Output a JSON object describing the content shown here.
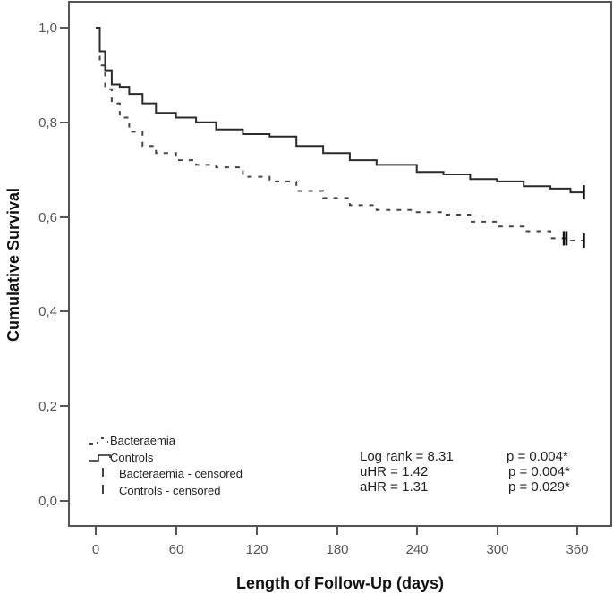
{
  "chart_data": {
    "type": "line",
    "subtype": "kaplan-meier-survival",
    "title": "",
    "xlabel": "Length of Follow-Up (days)",
    "ylabel": "Cumulative Survival",
    "xlim": [
      0,
      365
    ],
    "ylim": [
      0.0,
      1.0
    ],
    "x_ticks": [
      0,
      60,
      120,
      180,
      240,
      300,
      360
    ],
    "x_tick_labels": [
      "0",
      "60",
      "120",
      "180",
      "240",
      "300",
      "360"
    ],
    "y_ticks": [
      0.0,
      0.2,
      0.4,
      0.6,
      0.8,
      1.0
    ],
    "y_tick_labels": [
      "0,0",
      "0,2",
      "0,4",
      "0,6",
      "0,8",
      "1,0"
    ],
    "grid": false,
    "legend_position": "lower-left",
    "series": [
      {
        "name": "Bacteraemia",
        "style": "dashed",
        "x": [
          0,
          3,
          7,
          12,
          18,
          25,
          35,
          45,
          60,
          75,
          90,
          110,
          130,
          150,
          170,
          190,
          210,
          240,
          260,
          280,
          300,
          320,
          340,
          355,
          365
        ],
        "values": [
          1.0,
          0.92,
          0.87,
          0.84,
          0.81,
          0.78,
          0.75,
          0.735,
          0.72,
          0.71,
          0.705,
          0.685,
          0.675,
          0.655,
          0.64,
          0.625,
          0.615,
          0.61,
          0.605,
          0.59,
          0.58,
          0.57,
          0.555,
          0.55,
          0.55
        ],
        "censored_x": [
          350,
          352,
          365
        ]
      },
      {
        "name": "Controls",
        "style": "solid-step",
        "x": [
          0,
          3,
          7,
          12,
          18,
          25,
          35,
          45,
          60,
          75,
          90,
          110,
          130,
          150,
          170,
          190,
          210,
          240,
          260,
          280,
          300,
          320,
          340,
          355,
          365
        ],
        "values": [
          1.0,
          0.95,
          0.91,
          0.88,
          0.875,
          0.86,
          0.84,
          0.82,
          0.81,
          0.8,
          0.785,
          0.775,
          0.77,
          0.75,
          0.735,
          0.72,
          0.71,
          0.695,
          0.69,
          0.68,
          0.675,
          0.665,
          0.66,
          0.652,
          0.652
        ],
        "censored_x": [
          365
        ]
      }
    ],
    "legend": [
      {
        "label": "Bacteraemia",
        "symbol": "dashed-line"
      },
      {
        "label": "Controls",
        "symbol": "solid-step-line"
      },
      {
        "label": "Bacteraemia - censored",
        "symbol": "censor-tick"
      },
      {
        "label": "Controls - censored",
        "symbol": "censor-tick"
      }
    ],
    "annotations": [
      {
        "stat": "Log rank = 8.31",
        "p": "p = 0.004*"
      },
      {
        "stat": "uHR = 1.42",
        "p": "p = 0.004*"
      },
      {
        "stat": "aHR = 1.31",
        "p": "p = 0.029*"
      }
    ]
  },
  "labels": {
    "xlabel": "Length of Follow-Up (days)",
    "ylabel": "Cumulative Survival",
    "x_ticks": [
      "0",
      "60",
      "120",
      "180",
      "240",
      "300",
      "360"
    ],
    "y_ticks": [
      "1,0",
      "0,8",
      "0,6",
      "0,4",
      "0,2",
      "0,0"
    ],
    "legend": [
      "Bacteraemia",
      "Controls",
      "Bacteraemia - censored",
      "Controls - censored"
    ],
    "stats": [
      "Log rank = 8.31",
      "uHR = 1.42",
      "aHR = 1.31"
    ],
    "pvalues": [
      "p = 0.004*",
      "p = 0.004*",
      "p = 0.029*"
    ]
  },
  "colors": {
    "axis": "#555555",
    "controls_line": "#2b2b2b",
    "bacteraemia_line": "#444444",
    "background": "#ffffff"
  }
}
